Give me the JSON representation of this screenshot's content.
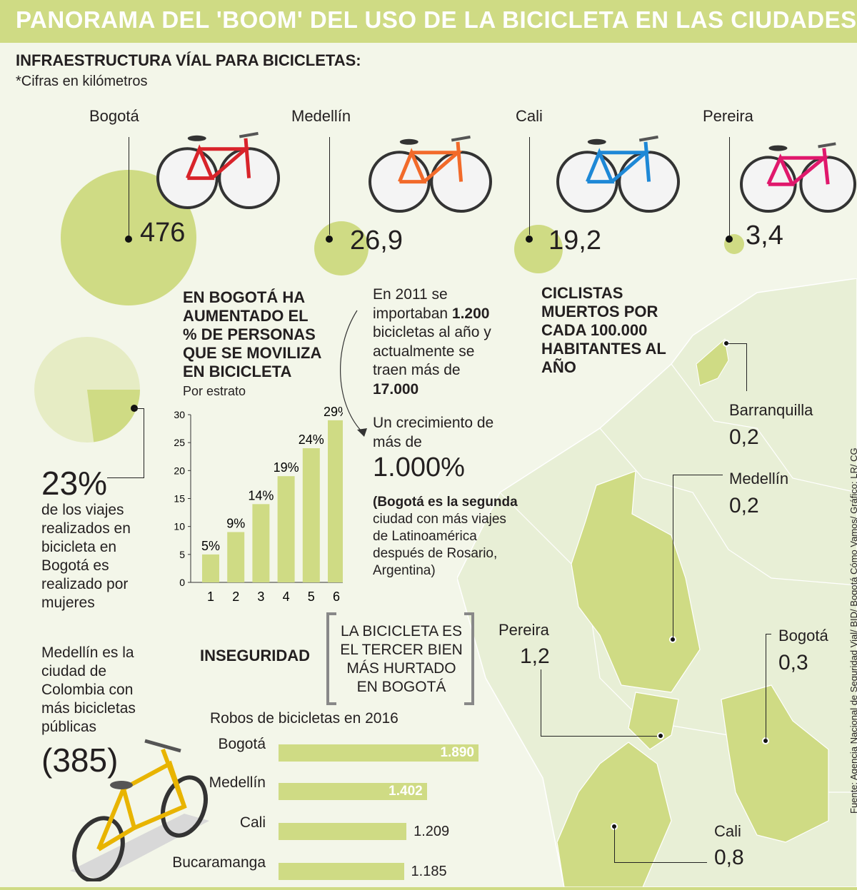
{
  "header": {
    "title": "PANORAMA DEL 'BOOM' DEL USO DE LA BICICLETA EN LAS CIUDADES"
  },
  "infra": {
    "title": "INFRAESTRUCTURA VÍAL PARA BICICLETAS:",
    "note": "*Cifras en kilómetros",
    "cities": [
      {
        "name": "Bogotá",
        "value": "476",
        "color": "#d8232a"
      },
      {
        "name": "Medellín",
        "value": "26,9",
        "color": "#f26a2a"
      },
      {
        "name": "Cali",
        "value": "19,2",
        "color": "#1e88d6"
      },
      {
        "name": "Pereira",
        "value": "3,4",
        "color": "#e0186c"
      }
    ]
  },
  "women": {
    "percent": "23%",
    "fraction": 0.23,
    "text": "de los viajes realizados en bicicleta en Bogotá es realizado por mujeres"
  },
  "estrato": {
    "title": "EN BOGOTÁ HA AUMENTADO EL % DE PERSONAS QUE SE MOVILIZA EN BICICLETA",
    "subtitle": "Por estrato"
  },
  "chart_data": [
    {
      "type": "bar",
      "categories": [
        "1",
        "2",
        "3",
        "4",
        "5",
        "6"
      ],
      "values": [
        5,
        9,
        14,
        19,
        24,
        29
      ],
      "value_labels": [
        "5%",
        "9%",
        "14%",
        "19%",
        "24%",
        "29%"
      ],
      "yticks": [
        "0",
        "5",
        "10",
        "15",
        "20",
        "25",
        "30"
      ],
      "ylim": [
        0,
        30
      ],
      "color": "#cfdb84"
    },
    {
      "type": "bar",
      "orientation": "horizontal",
      "title": "Robos de bicicletas en 2016",
      "categories": [
        "Bogotá",
        "Medellín",
        "Cali",
        "Bucaramanga"
      ],
      "values": [
        1890,
        1402,
        1209,
        1185
      ],
      "value_labels": [
        "1.890",
        "1.402",
        "1.209",
        "1.185"
      ],
      "color": "#cfdb84"
    }
  ],
  "imports": {
    "line1": "En 2011 se",
    "line2a": "importaban ",
    "line2b": "1.200",
    "line3": "bicicletas al año y",
    "line4": "actualmente se",
    "line5": "traen más de",
    "line6": "17.000",
    "growth1": "Un crecimiento de",
    "growth2": "más de",
    "growth_value": "1.000%",
    "note_bold": "(Bogotá es la segunda",
    "note_rest": [
      "ciudad con más viajes",
      "de Latinoamérica",
      "después de Rosario,",
      "Argentina)"
    ]
  },
  "deaths": {
    "title": "CICLISTAS MUERTOS POR CADA 100.000 HABITANTES AL AÑO",
    "cities": [
      {
        "name": "Barranquilla",
        "value": "0,2"
      },
      {
        "name": "Medellín",
        "value": "0,2"
      },
      {
        "name": "Pereira",
        "value": "1,2"
      },
      {
        "name": "Bogotá",
        "value": "0,3"
      },
      {
        "name": "Cali",
        "value": "0,8"
      }
    ]
  },
  "public_bikes": {
    "text": [
      "Medellín es la",
      "ciudad de",
      "Colombia con",
      "más bicicletas",
      "públicas"
    ],
    "value": "(385)"
  },
  "security": {
    "label": "INSEGURIDAD",
    "bracket_text": [
      "LA BICICLETA ES",
      "EL TERCER BIEN",
      "MÁS HURTADO",
      "EN BOGOTÁ"
    ]
  },
  "source": "Fuente: Agencia Nacional de Seguridad Vial/ BID/ Bogotá Cómo Vamos/ Gráfico: LR/ CG"
}
